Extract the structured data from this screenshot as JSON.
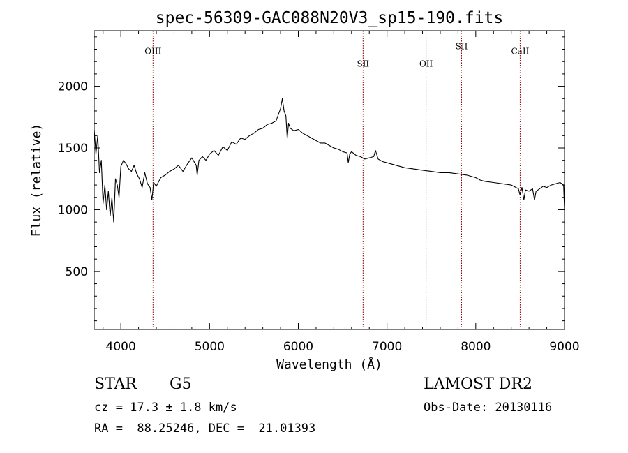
{
  "chart_data": {
    "type": "line",
    "title": "spec-56309-GAC088N20V3_sp15-190.fits",
    "xlabel": "Wavelength (Å)",
    "ylabel": "Flux (relative)",
    "xlim": [
      3700,
      9000
    ],
    "ylim": [
      30,
      2450
    ],
    "x_ticks": [
      4000,
      5000,
      6000,
      7000,
      8000,
      9000
    ],
    "y_ticks": [
      500,
      1000,
      1500,
      2000
    ],
    "grid": false,
    "series": [
      {
        "color": "#000000",
        "x": [
          3700,
          3720,
          3740,
          3760,
          3780,
          3800,
          3820,
          3840,
          3860,
          3880,
          3900,
          3920,
          3940,
          3960,
          3980,
          4000,
          4030,
          4060,
          4090,
          4120,
          4150,
          4180,
          4210,
          4240,
          4270,
          4300,
          4330,
          4350,
          4370,
          4400,
          4450,
          4500,
          4550,
          4600,
          4650,
          4700,
          4750,
          4800,
          4850,
          4861,
          4880,
          4920,
          4960,
          5000,
          5050,
          5100,
          5150,
          5200,
          5250,
          5300,
          5350,
          5400,
          5450,
          5500,
          5550,
          5600,
          5650,
          5700,
          5750,
          5780,
          5800,
          5820,
          5840,
          5860,
          5875,
          5890,
          5910,
          5950,
          6000,
          6050,
          6100,
          6150,
          6200,
          6250,
          6300,
          6350,
          6400,
          6450,
          6500,
          6550,
          6563,
          6580,
          6600,
          6650,
          6700,
          6750,
          6800,
          6850,
          6870,
          6900,
          6950,
          7000,
          7100,
          7200,
          7300,
          7400,
          7500,
          7600,
          7700,
          7800,
          7900,
          8000,
          8050,
          8100,
          8200,
          8300,
          8400,
          8480,
          8498,
          8520,
          8542,
          8560,
          8600,
          8640,
          8662,
          8680,
          8720,
          8760,
          8800,
          8850,
          8900,
          8950,
          8990,
          9000
        ],
        "y": [
          1650,
          1450,
          1600,
          1300,
          1400,
          1050,
          1200,
          1000,
          1150,
          950,
          1100,
          900,
          1250,
          1200,
          1100,
          1350,
          1400,
          1370,
          1330,
          1310,
          1360,
          1290,
          1250,
          1180,
          1300,
          1210,
          1180,
          1080,
          1220,
          1190,
          1260,
          1280,
          1310,
          1330,
          1360,
          1310,
          1370,
          1420,
          1360,
          1280,
          1400,
          1430,
          1400,
          1450,
          1480,
          1440,
          1510,
          1480,
          1550,
          1530,
          1580,
          1570,
          1600,
          1620,
          1650,
          1660,
          1690,
          1700,
          1720,
          1780,
          1820,
          1900,
          1800,
          1760,
          1580,
          1700,
          1660,
          1640,
          1650,
          1620,
          1600,
          1580,
          1560,
          1540,
          1540,
          1520,
          1500,
          1490,
          1470,
          1460,
          1380,
          1450,
          1470,
          1440,
          1430,
          1410,
          1420,
          1430,
          1480,
          1410,
          1390,
          1380,
          1360,
          1340,
          1330,
          1320,
          1310,
          1300,
          1300,
          1290,
          1280,
          1260,
          1240,
          1230,
          1220,
          1210,
          1200,
          1170,
          1120,
          1180,
          1080,
          1160,
          1150,
          1170,
          1080,
          1150,
          1170,
          1190,
          1180,
          1200,
          1210,
          1220,
          1200,
          1000
        ]
      }
    ],
    "lines": [
      {
        "label": "OIII",
        "x": 4363,
        "label_y": 2260
      },
      {
        "label": "SII",
        "x": 6730,
        "label_y": 2160
      },
      {
        "label": "OII",
        "x": 7440,
        "label_y": 2160
      },
      {
        "label": "SII",
        "x": 7840,
        "label_y": 2300
      },
      {
        "label": "CaII",
        "x": 8500,
        "label_y": 2260
      }
    ]
  },
  "footer": {
    "object_class": "STAR",
    "subclass": "G5",
    "survey": "LAMOST DR2",
    "redshift": "cz = 17.3 ± 1.8 km/s",
    "obs_date": "Obs-Date: 20130116",
    "coords": "RA =  88.25246, DEC =  21.01393"
  }
}
